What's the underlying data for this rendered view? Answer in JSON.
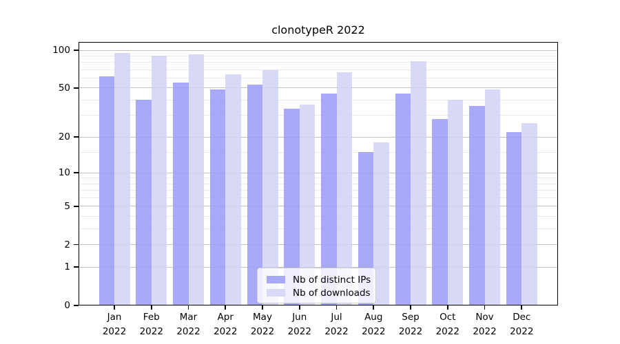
{
  "chart_data": {
    "type": "bar",
    "title": "clonotypeR 2022",
    "categories": [
      "Jan",
      "Feb",
      "Mar",
      "Apr",
      "May",
      "Jun",
      "Jul",
      "Aug",
      "Sep",
      "Oct",
      "Nov",
      "Dec"
    ],
    "x_tick_year": "2022",
    "series": [
      {
        "name": "Nb of distinct IPs",
        "color": "#a9a9f9",
        "values": [
          62,
          40,
          55,
          49,
          53,
          34,
          45,
          15,
          45,
          28,
          36,
          22
        ]
      },
      {
        "name": "Nb of downloads",
        "color": "#d8d8f7",
        "values": [
          95,
          90,
          93,
          64,
          69,
          37,
          67,
          18,
          82,
          40,
          49,
          26
        ]
      }
    ],
    "yscale": "log1p",
    "yticks": [
      0,
      1,
      2,
      5,
      10,
      20,
      50,
      100
    ],
    "minor_yticks": [
      3,
      4,
      6,
      7,
      8,
      9,
      15,
      30,
      40,
      60,
      70,
      80,
      90
    ],
    "ylim_top": 117,
    "grid": "on",
    "legend_position": "lower center",
    "colors": {
      "major_grid": "#c3c3c3",
      "minor_grid": "#e9e9e9",
      "axis": "#000000",
      "background": "#ffffff"
    }
  }
}
